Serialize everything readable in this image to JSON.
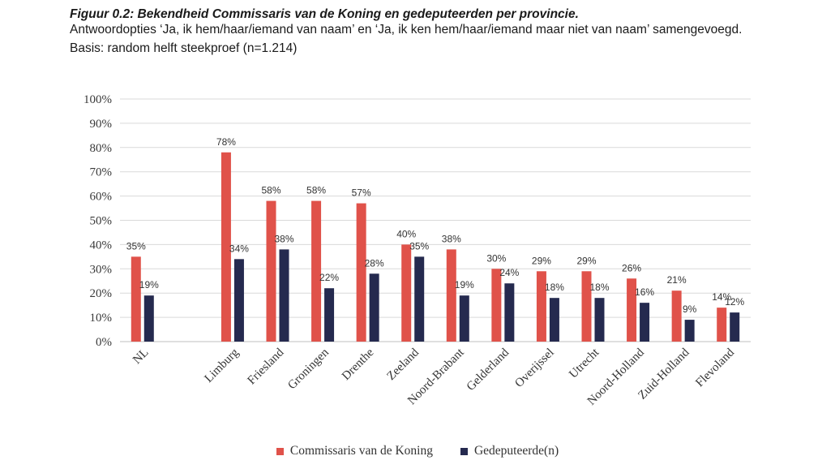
{
  "header": {
    "title": "Figuur 0.2: Bekendheid Commissaris van de Koning en gedeputeerden per provincie.",
    "subtitle": "Antwoordopties ‘Ja, ik hem/haar/iemand van naam’ en ‘Ja, ik ken hem/haar/iemand maar niet van naam’ samengevoegd.",
    "basis": "Basis: random helft steekproef (n=1.214)"
  },
  "chart_data": {
    "type": "bar",
    "categories": [
      "NL",
      "",
      "Limburg",
      "Friesland",
      "Groningen",
      "Drenthe",
      "Zeeland",
      "Noord-Brabant",
      "Gelderland",
      "Overijssel",
      "Utrecht",
      "Noord-Holland",
      "Zuid-Holland",
      "Flevoland"
    ],
    "series": [
      {
        "name": "Commissaris van de Koning",
        "color": "#e0524a",
        "values": [
          35,
          null,
          78,
          58,
          58,
          57,
          40,
          38,
          30,
          29,
          29,
          26,
          21,
          14
        ],
        "labels": [
          "35%",
          "",
          "78%",
          "58%",
          "58%",
          "57%",
          "40%",
          "38%",
          "30%",
          "29%",
          "29%",
          "26%",
          "21%",
          "14%"
        ]
      },
      {
        "name": "Gedeputeerde(n)",
        "color": "#252a4f",
        "values": [
          19,
          null,
          34,
          38,
          22,
          28,
          35,
          19,
          24,
          18,
          18,
          16,
          9,
          12
        ],
        "labels": [
          "19%",
          "",
          "34%",
          "38%",
          "22%",
          "28%",
          "35%",
          "19%",
          "24%",
          "18%",
          "18%",
          "16%",
          "9%",
          "12%"
        ]
      }
    ],
    "yticks": [
      "0%",
      "10%",
      "20%",
      "30%",
      "40%",
      "50%",
      "60%",
      "70%",
      "80%",
      "90%",
      "100%"
    ],
    "ylim": [
      0,
      100
    ],
    "grid": true,
    "legend_position": "bottom"
  }
}
